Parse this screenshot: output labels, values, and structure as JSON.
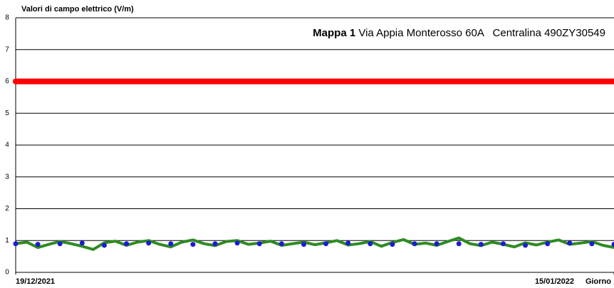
{
  "chart_data": {
    "type": "line",
    "title": "Valori di campo elettrico (V/m)",
    "annotation": {
      "bold": "Mappa 1",
      "text": "Via Appia Monterosso 60A   Centralina 490ZY30549"
    },
    "xlabel": "Giorno",
    "xlim": [
      0,
      27
    ],
    "xticks": [
      {
        "value": 0,
        "label": "19/12/2021"
      },
      {
        "value": 27,
        "label": "15/01/2022"
      }
    ],
    "ylim": [
      0,
      8
    ],
    "yticks": [
      0,
      1,
      2,
      3,
      4,
      5,
      6,
      7,
      8
    ],
    "grid": true,
    "series": [
      {
        "color": "#ff0000",
        "width": 8,
        "x": [
          0,
          27
        ],
        "values": [
          6,
          6
        ]
      },
      {
        "color": "#2e8b22",
        "width": 4,
        "x": [
          0,
          0.5,
          1,
          1.5,
          2,
          2.5,
          3,
          3.5,
          4,
          4.5,
          5,
          5.5,
          6,
          6.5,
          7,
          7.5,
          8,
          8.5,
          9,
          9.5,
          10,
          10.5,
          11,
          11.5,
          12,
          12.5,
          13,
          13.5,
          14,
          14.5,
          15,
          15.5,
          16,
          16.5,
          17,
          17.5,
          18,
          18.5,
          19,
          19.5,
          20,
          20.5,
          21,
          21.5,
          22,
          22.5,
          23,
          23.5,
          24,
          24.5,
          25,
          25.5,
          26,
          26.5,
          27
        ],
        "values": [
          0.9,
          0.95,
          0.78,
          0.88,
          0.97,
          0.9,
          0.82,
          0.72,
          0.93,
          0.98,
          0.85,
          0.95,
          1.0,
          0.88,
          0.8,
          0.95,
          1.02,
          0.9,
          0.84,
          0.97,
          1.0,
          0.88,
          0.92,
          0.98,
          0.85,
          0.9,
          0.95,
          0.87,
          0.93,
          1.0,
          0.86,
          0.9,
          0.97,
          0.82,
          0.94,
          1.03,
          0.88,
          0.92,
          0.85,
          0.97,
          1.08,
          0.9,
          0.84,
          0.95,
          0.88,
          0.8,
          0.93,
          0.86,
          0.95,
          1.02,
          0.88,
          0.92,
          0.97,
          0.85,
          0.78
        ]
      },
      {
        "color": "#1c1cd6",
        "marker": true,
        "x": [
          0,
          1,
          2,
          3,
          4,
          5,
          6,
          7,
          8,
          9,
          10,
          11,
          12,
          13,
          14,
          15,
          16,
          17,
          18,
          19,
          20,
          21,
          22,
          23,
          24,
          25,
          26,
          27
        ],
        "values": [
          0.9,
          0.88,
          0.9,
          0.92,
          0.85,
          0.9,
          0.92,
          0.9,
          0.88,
          0.9,
          0.92,
          0.9,
          0.9,
          0.88,
          0.9,
          0.92,
          0.9,
          0.88,
          0.9,
          0.9,
          0.9,
          0.88,
          0.9,
          0.85,
          0.9,
          0.92,
          0.9,
          0.88
        ]
      }
    ]
  }
}
